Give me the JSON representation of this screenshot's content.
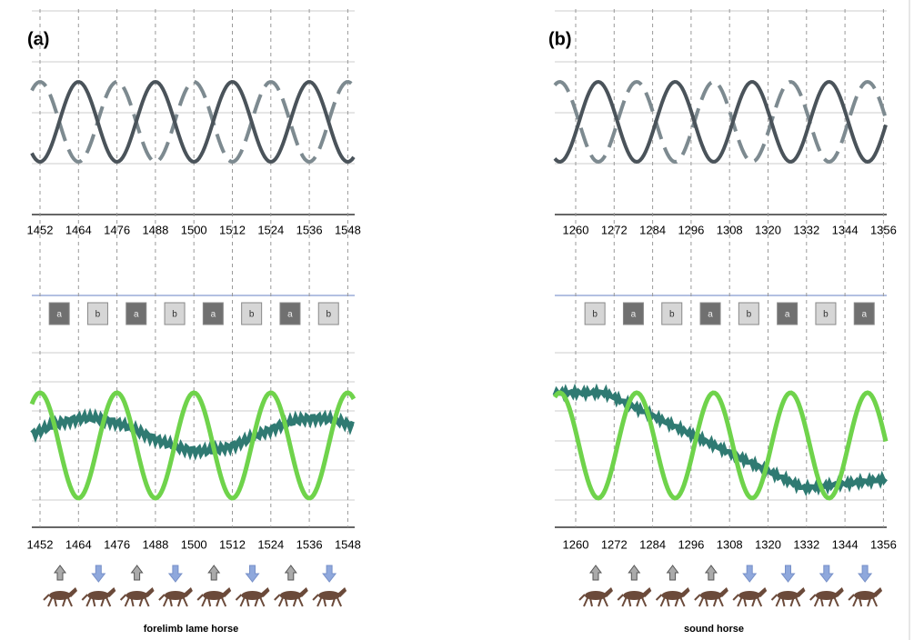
{
  "panels": [
    {
      "label": "(a)",
      "top_ticks": [
        "1452",
        "1464",
        "1476",
        "1488",
        "1500",
        "1512",
        "1524",
        "1536",
        "1548"
      ],
      "boxes": [
        "a",
        "b",
        "a",
        "b",
        "a",
        "b",
        "a",
        "b"
      ],
      "bottom_ticks": [
        "1452",
        "1464",
        "1476",
        "1488",
        "1500",
        "1512",
        "1524",
        "1536",
        "1548"
      ],
      "caption": "forelimb lame horse"
    },
    {
      "label": "(b)",
      "top_ticks": [
        "1260",
        "1272",
        "1284",
        "1296",
        "1308",
        "1320",
        "1332",
        "1344",
        "1356"
      ],
      "boxes": [
        "b",
        "a",
        "b",
        "a",
        "b",
        "a",
        "b",
        "a"
      ],
      "bottom_ticks": [
        "1260",
        "1272",
        "1284",
        "1296",
        "1308",
        "1320",
        "1332",
        "1344",
        "1356"
      ],
      "caption": "sound horse"
    }
  ]
}
